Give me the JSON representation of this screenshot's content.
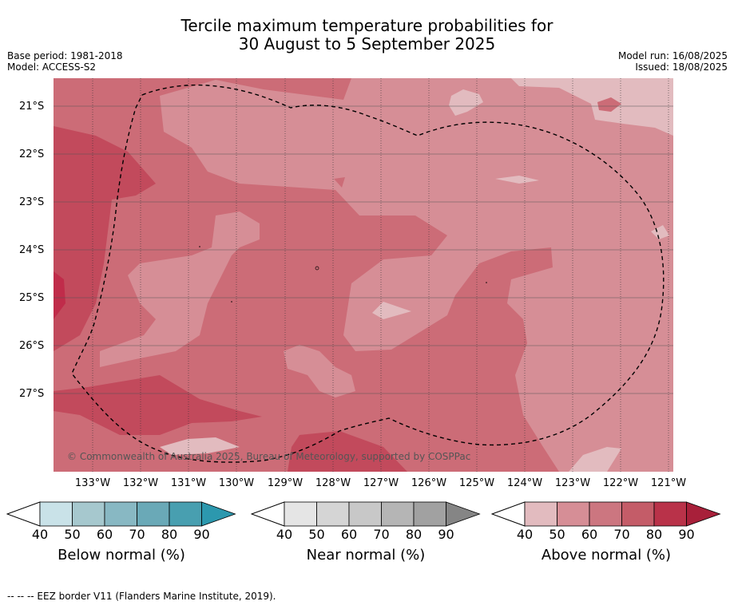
{
  "title_line1": "Tercile maximum temperature probabilities for",
  "title_line2": "30 August to 5 September 2025",
  "base_period": "Base period: 1981-2018",
  "model": "Model: ACCESS-S2",
  "model_run": "Model run: 16/08/2025",
  "issued": "Issued: 18/08/2025",
  "lat_labels": [
    "21°S",
    "22°S",
    "23°S",
    "24°S",
    "25°S",
    "26°S",
    "27°S"
  ],
  "lon_labels": [
    "133°W",
    "132°W",
    "131°W",
    "130°W",
    "129°W",
    "128°W",
    "127°W",
    "126°W",
    "125°W",
    "124°W",
    "123°W",
    "122°W",
    "121°W"
  ],
  "copyright": "© Commonwealth of Australia 2025, Bureau of Meteorology, supported by COSPPac",
  "colorbars": [
    {
      "label": "Below normal (%)",
      "ticks": [
        "40",
        "50",
        "60",
        "70",
        "80",
        "90"
      ],
      "colors": [
        "#c9e2e8",
        "#a6c8ce",
        "#88b8c3",
        "#6aa9b7",
        "#489fb0",
        "#2c98ae"
      ]
    },
    {
      "label": "Near normal (%)",
      "ticks": [
        "40",
        "50",
        "60",
        "70",
        "80",
        "90"
      ],
      "colors": [
        "#e5e5e5",
        "#d5d5d5",
        "#c8c8c8",
        "#b5b5b5",
        "#a1a1a1",
        "#858585"
      ]
    },
    {
      "label": "Above normal (%)",
      "ticks": [
        "40",
        "50",
        "60",
        "70",
        "80",
        "90"
      ],
      "colors": [
        "#e2bbbf",
        "#d68e96",
        "#cc7680",
        "#c45c68",
        "#b93249",
        "#a8203a"
      ]
    }
  ],
  "footer": "--  --  -- EEZ border V11 (Flanders Marine Institute, 2019)."
}
